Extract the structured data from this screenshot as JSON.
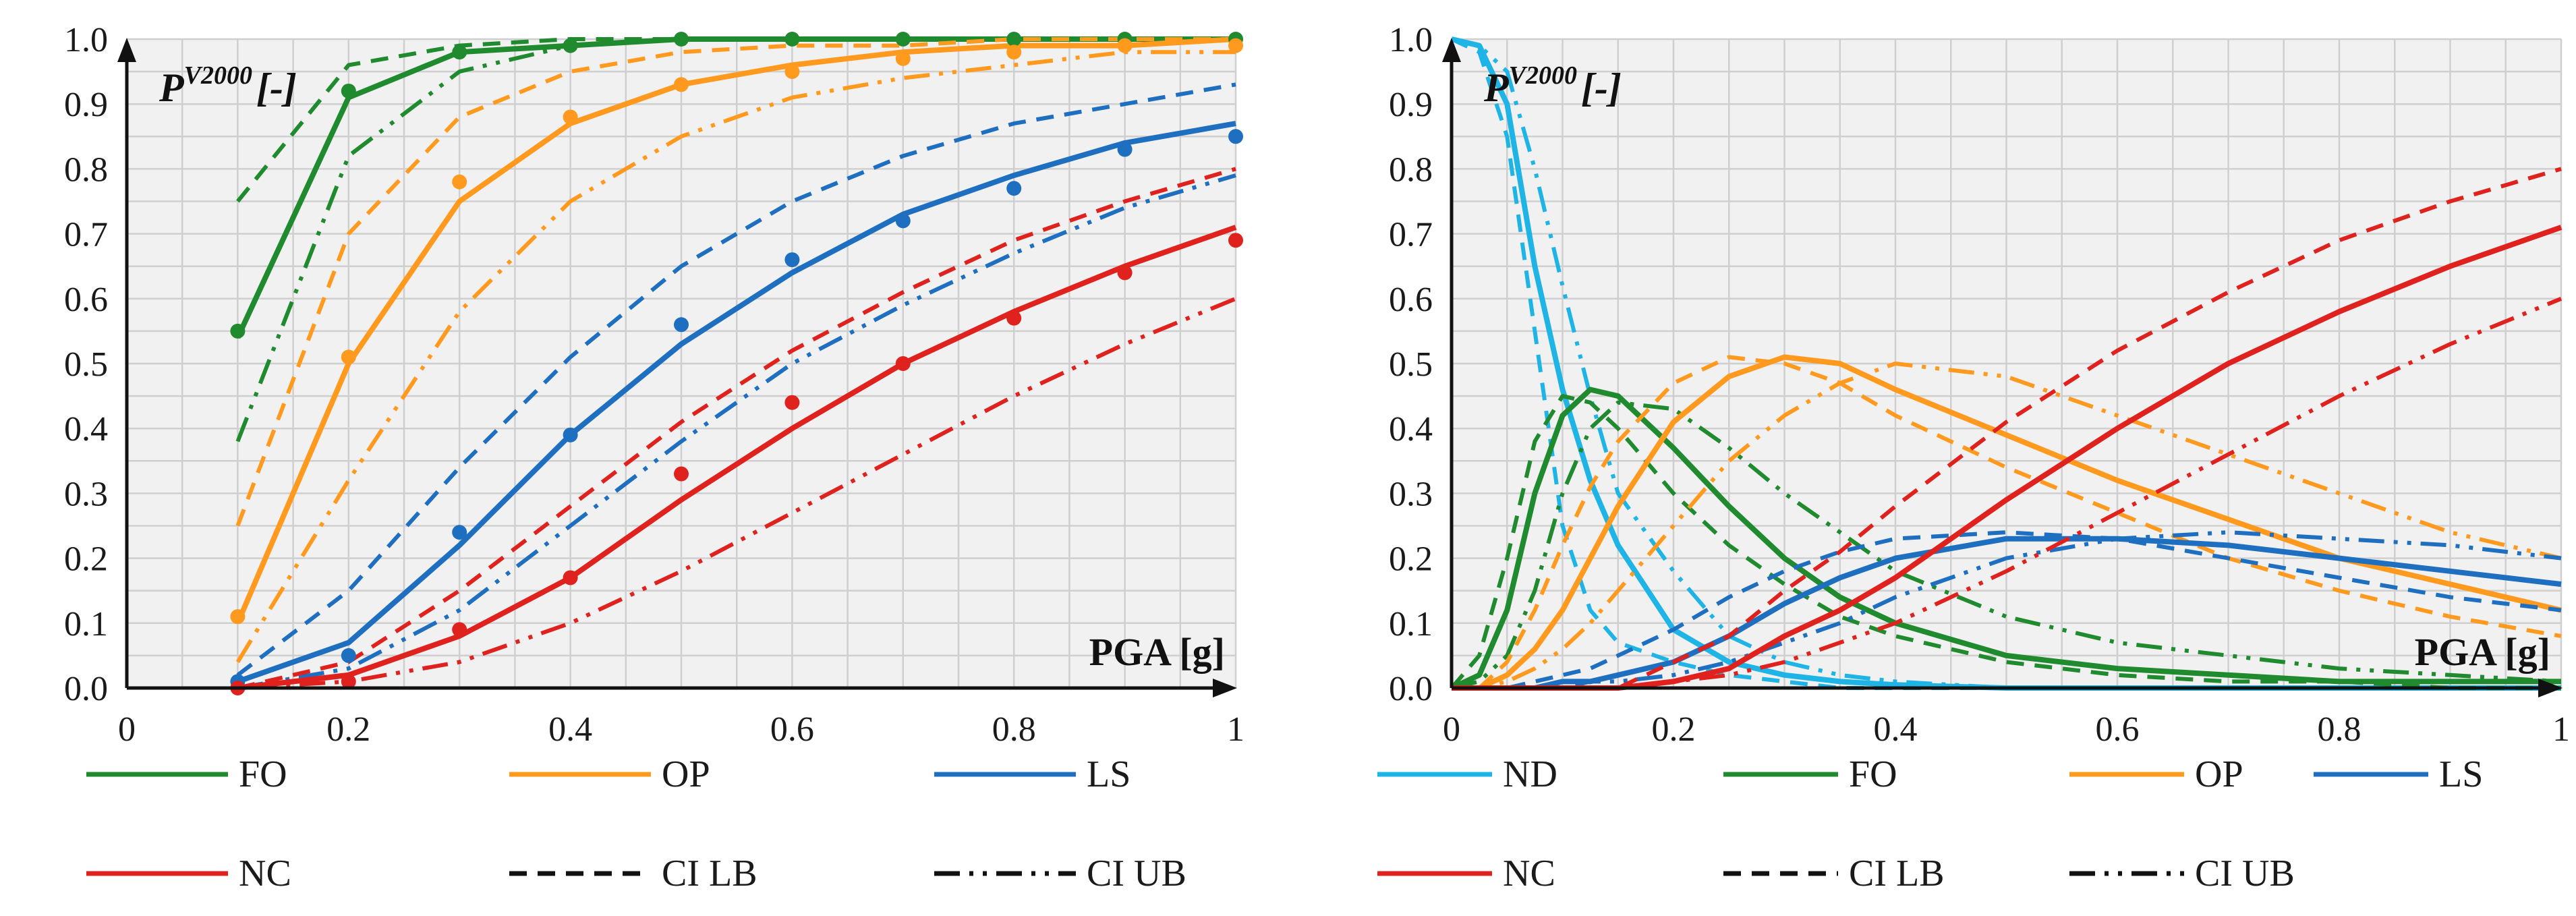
{
  "chart_data": [
    {
      "type": "line",
      "title": "",
      "xlabel": "PGA [g]",
      "ylabel": "P",
      "ylabel_sup": "V2000",
      "ylabel_suffix": "[-]",
      "xlim": [
        0,
        1
      ],
      "ylim": [
        0,
        1
      ],
      "x_ticks": [
        "0",
        "0.2",
        "0.4",
        "0.6",
        "0.8",
        "1"
      ],
      "y_ticks": [
        "0.0",
        "0.1",
        "0.2",
        "0.3",
        "0.4",
        "0.5",
        "0.6",
        "0.7",
        "0.8",
        "0.9",
        "1.0"
      ],
      "grid": true,
      "legend": [
        "FO",
        "OP",
        "LS",
        "NC",
        "CI LB",
        "CI UB"
      ],
      "colors": {
        "ND": "#1fb4e6",
        "FO": "#1f8a2e",
        "OP": "#ff9a1f",
        "LS": "#1f6fc0",
        "NC": "#e0221f"
      },
      "x": [
        0.1,
        0.2,
        0.3,
        0.4,
        0.5,
        0.6,
        0.7,
        0.8,
        0.9,
        1.0
      ],
      "series": [
        {
          "name": "FO",
          "style": "solid",
          "values": [
            0.54,
            0.91,
            0.98,
            0.99,
            1.0,
            1.0,
            1.0,
            1.0,
            1.0,
            1.0
          ]
        },
        {
          "name": "FO",
          "style": "dash",
          "values": [
            0.75,
            0.96,
            0.99,
            1.0,
            1.0,
            1.0,
            1.0,
            1.0,
            1.0,
            1.0
          ]
        },
        {
          "name": "FO",
          "style": "dashdotdot",
          "values": [
            0.38,
            0.82,
            0.95,
            0.99,
            1.0,
            1.0,
            1.0,
            1.0,
            1.0,
            1.0
          ]
        },
        {
          "name": "OP",
          "style": "solid",
          "values": [
            0.1,
            0.5,
            0.75,
            0.87,
            0.93,
            0.96,
            0.98,
            0.99,
            0.99,
            1.0
          ]
        },
        {
          "name": "OP",
          "style": "dash",
          "values": [
            0.25,
            0.7,
            0.88,
            0.95,
            0.98,
            0.99,
            0.99,
            1.0,
            1.0,
            1.0
          ]
        },
        {
          "name": "OP",
          "style": "dashdotdot",
          "values": [
            0.04,
            0.32,
            0.58,
            0.75,
            0.85,
            0.91,
            0.94,
            0.96,
            0.98,
            0.98
          ]
        },
        {
          "name": "LS",
          "style": "solid",
          "values": [
            0.01,
            0.07,
            0.22,
            0.39,
            0.53,
            0.64,
            0.73,
            0.79,
            0.84,
            0.87
          ]
        },
        {
          "name": "LS",
          "style": "dash",
          "values": [
            0.02,
            0.15,
            0.34,
            0.51,
            0.65,
            0.75,
            0.82,
            0.87,
            0.9,
            0.93
          ]
        },
        {
          "name": "LS",
          "style": "dashdotdot",
          "values": [
            0.0,
            0.03,
            0.12,
            0.25,
            0.38,
            0.5,
            0.59,
            0.67,
            0.74,
            0.79
          ]
        },
        {
          "name": "NC",
          "style": "solid",
          "values": [
            0.0,
            0.02,
            0.08,
            0.17,
            0.29,
            0.4,
            0.5,
            0.58,
            0.65,
            0.71
          ]
        },
        {
          "name": "NC",
          "style": "dash",
          "values": [
            0.0,
            0.04,
            0.15,
            0.28,
            0.41,
            0.52,
            0.61,
            0.69,
            0.75,
            0.8
          ]
        },
        {
          "name": "NC",
          "style": "dashdotdot",
          "values": [
            0.0,
            0.01,
            0.04,
            0.1,
            0.18,
            0.27,
            0.36,
            0.45,
            0.53,
            0.6
          ]
        }
      ],
      "points": [
        {
          "name": "FO",
          "values": [
            0.55,
            0.92,
            0.98,
            0.99,
            1.0,
            1.0,
            1.0,
            1.0,
            1.0,
            1.0
          ]
        },
        {
          "name": "OP",
          "values": [
            0.11,
            0.51,
            0.78,
            0.88,
            0.93,
            0.95,
            0.97,
            0.98,
            0.99,
            0.99
          ]
        },
        {
          "name": "LS",
          "values": [
            0.01,
            0.05,
            0.24,
            0.39,
            0.56,
            0.66,
            0.72,
            0.77,
            0.83,
            0.85
          ]
        },
        {
          "name": "NC",
          "values": [
            0.0,
            0.01,
            0.09,
            0.17,
            0.33,
            0.44,
            0.5,
            0.57,
            0.64,
            0.69
          ]
        }
      ]
    },
    {
      "type": "line",
      "title": "",
      "xlabel": "PGA [g]",
      "ylabel": "P",
      "ylabel_sup": "V2000",
      "ylabel_suffix": "[-]",
      "xlim": [
        0,
        1
      ],
      "ylim": [
        0,
        1
      ],
      "x_ticks": [
        "0",
        "0.2",
        "0.4",
        "0.6",
        "0.8",
        "1"
      ],
      "y_ticks": [
        "0.0",
        "0.1",
        "0.2",
        "0.3",
        "0.4",
        "0.5",
        "0.6",
        "0.7",
        "0.8",
        "0.9",
        "1.0"
      ],
      "grid": true,
      "legend": [
        "ND",
        "FO",
        "OP",
        "LS",
        "NC",
        "CI LB",
        "CI UB"
      ],
      "x": [
        0.0,
        0.025,
        0.05,
        0.075,
        0.1,
        0.125,
        0.15,
        0.2,
        0.25,
        0.3,
        0.35,
        0.4,
        0.5,
        0.6,
        0.7,
        0.8,
        0.9,
        1.0
      ],
      "series": [
        {
          "name": "ND",
          "style": "solid",
          "values": [
            1.0,
            0.99,
            0.9,
            0.65,
            0.46,
            0.32,
            0.22,
            0.09,
            0.04,
            0.02,
            0.01,
            0.005,
            0.0,
            0.0,
            0.0,
            0.0,
            0.0,
            0.0
          ]
        },
        {
          "name": "ND",
          "style": "dash",
          "values": [
            1.0,
            0.98,
            0.85,
            0.55,
            0.25,
            0.12,
            0.07,
            0.04,
            0.02,
            0.01,
            0.0,
            0.0,
            0.0,
            0.0,
            0.0,
            0.0,
            0.0,
            0.0
          ]
        },
        {
          "name": "ND",
          "style": "dashdotdot",
          "values": [
            1.0,
            0.99,
            0.95,
            0.8,
            0.62,
            0.45,
            0.3,
            0.18,
            0.08,
            0.04,
            0.02,
            0.01,
            0.0,
            0.0,
            0.0,
            0.0,
            0.0,
            0.0
          ]
        },
        {
          "name": "FO",
          "style": "solid",
          "values": [
            0.0,
            0.02,
            0.12,
            0.3,
            0.42,
            0.46,
            0.45,
            0.37,
            0.28,
            0.2,
            0.14,
            0.1,
            0.05,
            0.03,
            0.02,
            0.01,
            0.01,
            0.01
          ]
        },
        {
          "name": "FO",
          "style": "dash",
          "values": [
            0.0,
            0.05,
            0.2,
            0.38,
            0.45,
            0.44,
            0.4,
            0.3,
            0.22,
            0.16,
            0.11,
            0.08,
            0.04,
            0.02,
            0.01,
            0.01,
            0.0,
            0.0
          ]
        },
        {
          "name": "FO",
          "style": "dashdotdot",
          "values": [
            0.0,
            0.01,
            0.05,
            0.15,
            0.3,
            0.4,
            0.44,
            0.43,
            0.37,
            0.3,
            0.24,
            0.18,
            0.11,
            0.07,
            0.05,
            0.03,
            0.02,
            0.01
          ]
        },
        {
          "name": "OP",
          "style": "solid",
          "values": [
            0.0,
            0.0,
            0.02,
            0.06,
            0.12,
            0.2,
            0.28,
            0.41,
            0.48,
            0.51,
            0.5,
            0.46,
            0.39,
            0.32,
            0.26,
            0.2,
            0.16,
            0.12
          ]
        },
        {
          "name": "OP",
          "style": "dash",
          "values": [
            0.0,
            0.0,
            0.04,
            0.12,
            0.22,
            0.31,
            0.38,
            0.47,
            0.51,
            0.5,
            0.47,
            0.42,
            0.34,
            0.27,
            0.2,
            0.15,
            0.11,
            0.08
          ]
        },
        {
          "name": "OP",
          "style": "dashdotdot",
          "values": [
            0.0,
            0.0,
            0.01,
            0.03,
            0.06,
            0.1,
            0.15,
            0.25,
            0.35,
            0.42,
            0.47,
            0.5,
            0.48,
            0.42,
            0.36,
            0.3,
            0.24,
            0.2
          ]
        },
        {
          "name": "LS",
          "style": "solid",
          "values": [
            0.0,
            0.0,
            0.0,
            0.0,
            0.01,
            0.01,
            0.02,
            0.04,
            0.08,
            0.13,
            0.17,
            0.2,
            0.23,
            0.23,
            0.22,
            0.2,
            0.18,
            0.16
          ]
        },
        {
          "name": "LS",
          "style": "dash",
          "values": [
            0.0,
            0.0,
            0.0,
            0.01,
            0.02,
            0.03,
            0.05,
            0.09,
            0.14,
            0.18,
            0.21,
            0.23,
            0.24,
            0.23,
            0.2,
            0.17,
            0.14,
            0.12
          ]
        },
        {
          "name": "LS",
          "style": "dashdotdot",
          "values": [
            0.0,
            0.0,
            0.0,
            0.0,
            0.0,
            0.01,
            0.01,
            0.02,
            0.04,
            0.07,
            0.1,
            0.14,
            0.2,
            0.23,
            0.24,
            0.23,
            0.22,
            0.2
          ]
        },
        {
          "name": "NC",
          "style": "solid",
          "values": [
            0.0,
            0.0,
            0.0,
            0.0,
            0.0,
            0.0,
            0.0,
            0.01,
            0.03,
            0.08,
            0.12,
            0.17,
            0.29,
            0.4,
            0.5,
            0.58,
            0.65,
            0.71
          ]
        },
        {
          "name": "NC",
          "style": "dash",
          "values": [
            0.0,
            0.0,
            0.0,
            0.0,
            0.0,
            0.0,
            0.0,
            0.04,
            0.08,
            0.15,
            0.21,
            0.28,
            0.41,
            0.52,
            0.61,
            0.69,
            0.75,
            0.8
          ]
        },
        {
          "name": "NC",
          "style": "dashdotdot",
          "values": [
            0.0,
            0.0,
            0.0,
            0.0,
            0.0,
            0.0,
            0.0,
            0.01,
            0.02,
            0.04,
            0.07,
            0.1,
            0.18,
            0.27,
            0.36,
            0.45,
            0.53,
            0.6
          ]
        }
      ]
    }
  ]
}
